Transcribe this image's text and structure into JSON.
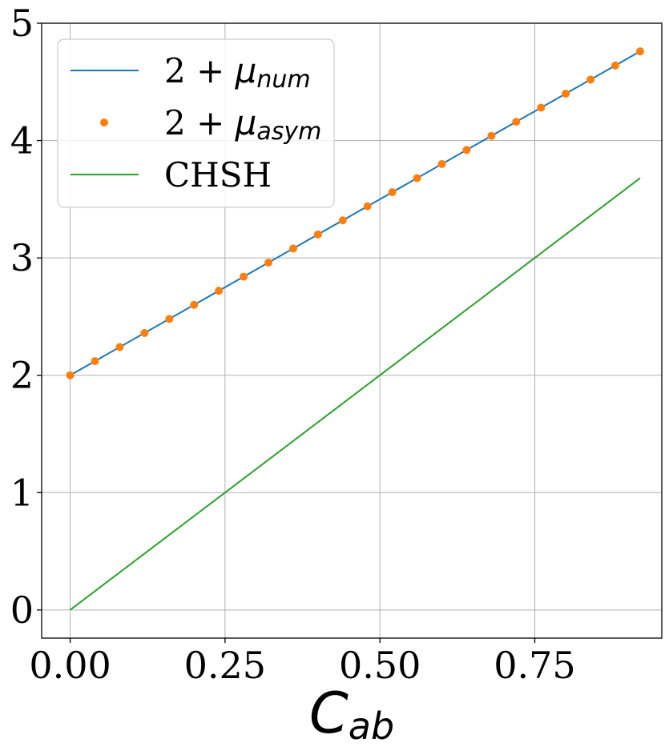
{
  "chart_data": {
    "type": "line",
    "title": "",
    "xlabel": "C",
    "xlabel_subscript": "ab",
    "ylabel": "",
    "xlim": [
      -0.046,
      0.955
    ],
    "ylim": [
      -0.24,
      5.0
    ],
    "xticks": [
      0.0,
      0.25,
      0.5,
      0.75
    ],
    "xtick_labels": [
      "0.00",
      "0.25",
      "0.50",
      "0.75"
    ],
    "yticks": [
      0,
      1,
      2,
      3,
      4,
      5
    ],
    "ytick_labels": [
      "0",
      "1",
      "2",
      "3",
      "4",
      "5"
    ],
    "grid": true,
    "legend_position": "top-left",
    "series": [
      {
        "name": "2 + μnum",
        "legend_prefix": "2 + ",
        "legend_symbol": "μ",
        "legend_sub": "num",
        "style": "line",
        "color": "#1f77b4",
        "x": [
          0.0,
          0.92
        ],
        "y": [
          2.0,
          4.76
        ]
      },
      {
        "name": "2 + μasym",
        "legend_prefix": "2 + ",
        "legend_symbol": "μ",
        "legend_sub": "asym",
        "style": "markers",
        "color": "#ff7f0e",
        "x": [
          0.0,
          0.04,
          0.08,
          0.12,
          0.16,
          0.2,
          0.24,
          0.28,
          0.32,
          0.36,
          0.4,
          0.44,
          0.48,
          0.52,
          0.56,
          0.6,
          0.64,
          0.68,
          0.72,
          0.76,
          0.8,
          0.84,
          0.88,
          0.92
        ],
        "y": [
          2.0,
          2.12,
          2.24,
          2.36,
          2.48,
          2.6,
          2.72,
          2.84,
          2.96,
          3.08,
          3.2,
          3.32,
          3.44,
          3.56,
          3.68,
          3.8,
          3.92,
          4.04,
          4.16,
          4.28,
          4.4,
          4.52,
          4.64,
          4.76
        ]
      },
      {
        "name": "CHSH",
        "legend_prefix": "CHSH",
        "legend_symbol": "",
        "legend_sub": "",
        "style": "line",
        "color": "#2ca02c",
        "x": [
          0.0,
          0.92
        ],
        "y": [
          0.0,
          3.68
        ]
      }
    ]
  }
}
